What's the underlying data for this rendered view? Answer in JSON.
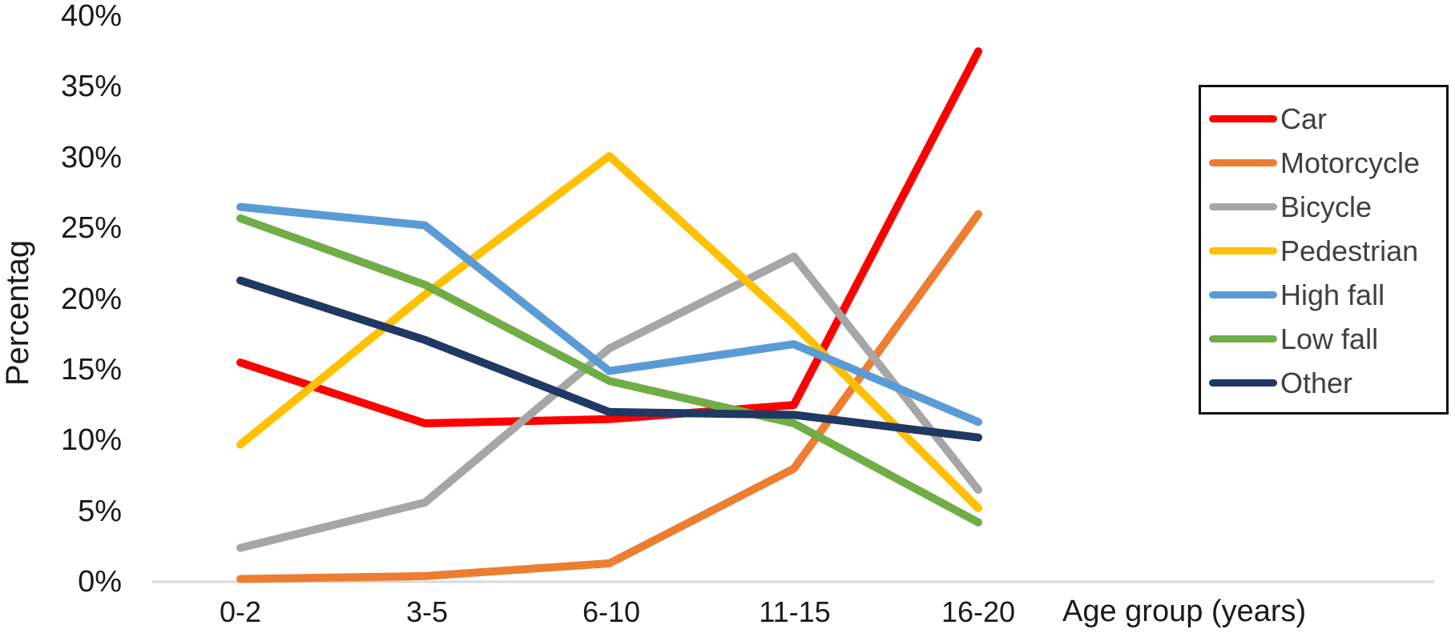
{
  "chart_data": {
    "type": "line",
    "categories": [
      "0-2",
      "3-5",
      "6-10",
      "11-15",
      "16-20"
    ],
    "series": [
      {
        "name": "Car",
        "color": "#FF0000",
        "values": [
          15.5,
          11.2,
          11.5,
          12.5,
          37.5
        ]
      },
      {
        "name": "Motorcycle",
        "color": "#ED7D31",
        "values": [
          0.2,
          0.4,
          1.3,
          8.0,
          26.0
        ]
      },
      {
        "name": "Bicycle",
        "color": "#A6A6A6",
        "values": [
          2.4,
          5.6,
          16.5,
          23.0,
          6.5
        ]
      },
      {
        "name": "Pedestrian",
        "color": "#FFC000",
        "values": [
          9.7,
          20.3,
          30.1,
          18.2,
          5.2
        ]
      },
      {
        "name": "High fall",
        "color": "#5B9BD5",
        "values": [
          26.5,
          25.2,
          14.9,
          16.8,
          11.3
        ]
      },
      {
        "name": "Low fall",
        "color": "#70AD47",
        "values": [
          25.7,
          21.0,
          14.2,
          11.2,
          4.2
        ]
      },
      {
        "name": "Other",
        "color": "#1F3864",
        "values": [
          21.3,
          17.1,
          12.0,
          11.8,
          10.2
        ]
      }
    ],
    "title": "",
    "xlabel": "Age group (years)",
    "ylabel": "Percentag",
    "ytick_labels": [
      "40%",
      "35%",
      "30%",
      "25%",
      "20%",
      "15%",
      "10%",
      "5%",
      "0%"
    ],
    "ylim": [
      0,
      40
    ],
    "ytick_step": 5,
    "grid": "baseline-only",
    "axis_line_color": "#D9D9D9",
    "legend_position": "right",
    "legend_border_color": "#0d0d0d",
    "legend_text_color": "#404040"
  }
}
